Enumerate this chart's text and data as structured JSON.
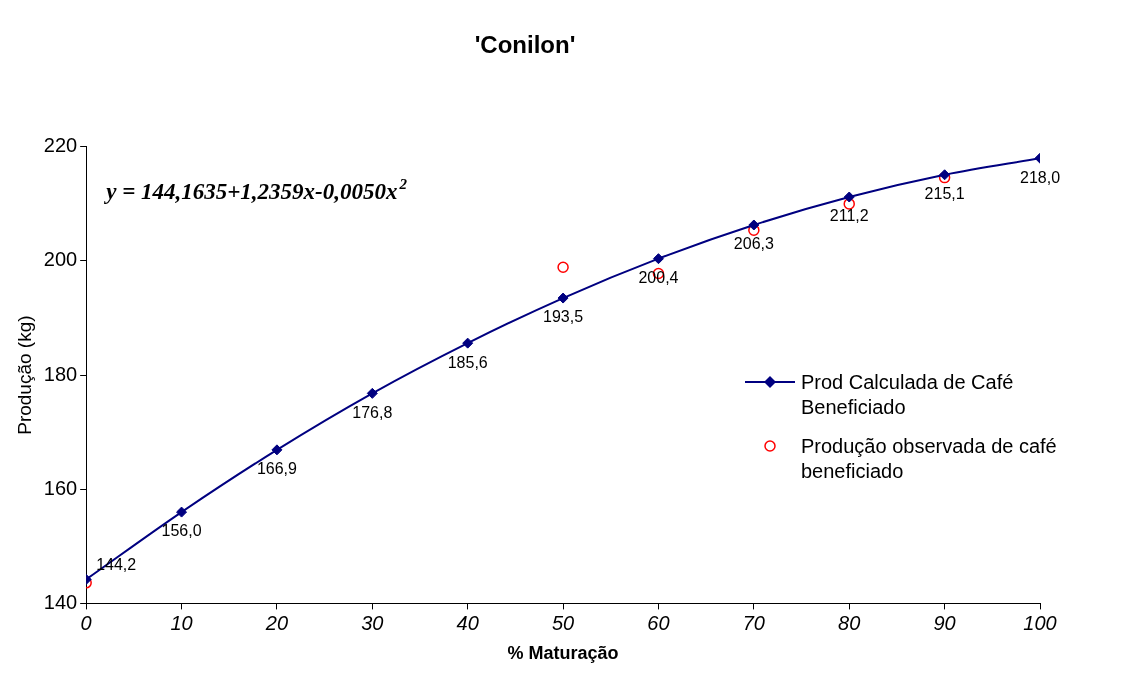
{
  "chart_data": {
    "type": "line",
    "title": "'Conilon'",
    "xlabel": "% Maturação",
    "ylabel": "Produção (kg)",
    "x": [
      0,
      10,
      20,
      30,
      40,
      50,
      60,
      70,
      80,
      90,
      100
    ],
    "xlim": [
      0,
      100
    ],
    "xticks": [
      0,
      10,
      20,
      30,
      40,
      50,
      60,
      70,
      80,
      90,
      100
    ],
    "ylim": [
      140,
      220
    ],
    "yticks": [
      140,
      160,
      180,
      200,
      220
    ],
    "grid": false,
    "legend": "right",
    "annotations": [
      "y = 144,1635+1,2359x-0,0050x$^{2}$"
    ],
    "series": [
      {
        "name": "Prod Calculada de Café Beneficiado",
        "color": "#000080",
        "marker": "diamond",
        "values": [
          144.2,
          156.0,
          166.9,
          176.8,
          185.6,
          193.5,
          200.4,
          206.3,
          211.2,
          215.1,
          218.0
        ],
        "value_labels": [
          "144,2",
          "156,0",
          "166,9",
          "176,8",
          "185,6",
          "193,5",
          "200,4",
          "206,3",
          "211,2",
          "215,1",
          "218,0"
        ]
      },
      {
        "name": "Produção observada de café beneficiado",
        "type": "scatter",
        "color": "#ff0000",
        "marker": "circle",
        "values": [
          143.6,
          null,
          null,
          null,
          null,
          198.9,
          197.8,
          205.4,
          210.0,
          214.6,
          null
        ]
      }
    ]
  }
}
